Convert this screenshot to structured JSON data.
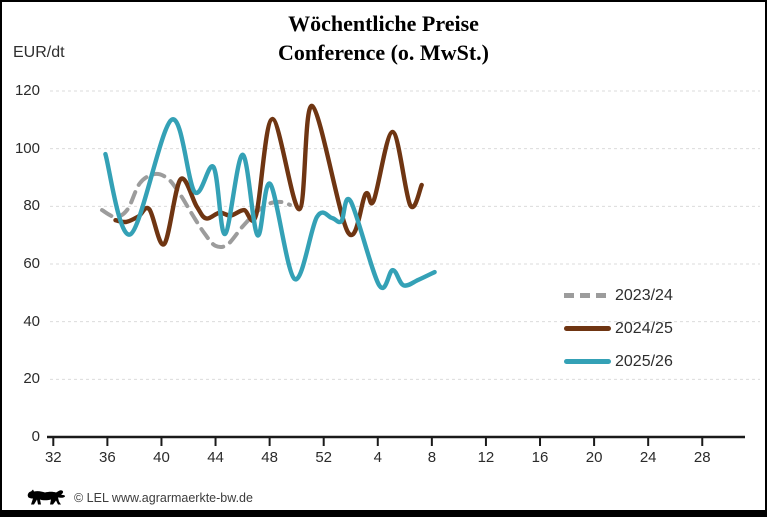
{
  "header": {
    "title_line1": "Wöchentliche Preise",
    "title_line2": "Conference (o. MwSt.)",
    "unit_label": "EUR/dt"
  },
  "footer": {
    "credit": "© LEL www.agrarmaerkte-bw.de",
    "logo": "baden-wuerttemberg-lion"
  },
  "colors": {
    "series_2023_24": "#9C9C9C",
    "series_2024_25": "#6F3512",
    "series_2025_26": "#34A1B6",
    "gridline": "#DBDBDB",
    "axis": "#1A1A1A"
  },
  "chart_data": {
    "type": "line",
    "title": "Wöchentliche Preise Conference (o. MwSt.)",
    "ylabel": "EUR/dt",
    "xlabel": "",
    "ylim": [
      0,
      120
    ],
    "yticks": [
      0,
      20,
      40,
      60,
      80,
      100,
      120
    ],
    "grid": "horizontal dashed",
    "legend_position": "right-middle",
    "x_axis_note": "calendar weeks; series points use axis positions where 0 = week 32, 20 = week 52, 24 = week 4 of the following year",
    "xticks": [
      {
        "label": "32",
        "pos": 0
      },
      {
        "label": "36",
        "pos": 4
      },
      {
        "label": "40",
        "pos": 8
      },
      {
        "label": "44",
        "pos": 12
      },
      {
        "label": "48",
        "pos": 16
      },
      {
        "label": "52",
        "pos": 20
      },
      {
        "label": "4",
        "pos": 24
      },
      {
        "label": "8",
        "pos": 28
      },
      {
        "label": "12",
        "pos": 32
      },
      {
        "label": "16",
        "pos": 36
      },
      {
        "label": "20",
        "pos": 40
      },
      {
        "label": "24",
        "pos": 44
      },
      {
        "label": "28",
        "pos": 48
      }
    ],
    "series": [
      {
        "name": "2023/24",
        "color": "#9C9C9C",
        "style": "dashed",
        "points": [
          [
            3.6,
            78.7
          ],
          [
            4.6,
            76.3
          ],
          [
            5.5,
            79
          ],
          [
            6.4,
            88
          ],
          [
            7.5,
            91.2
          ],
          [
            8.5,
            89.5
          ],
          [
            9.4,
            84
          ],
          [
            10.3,
            77
          ],
          [
            11.2,
            70.5
          ],
          [
            12.0,
            66.3
          ],
          [
            12.9,
            66.8
          ],
          [
            14.0,
            73
          ],
          [
            15.1,
            78.3
          ],
          [
            16.0,
            81
          ],
          [
            16.9,
            81.5
          ],
          [
            17.5,
            80.5
          ]
        ]
      },
      {
        "name": "2024/25",
        "color": "#6F3512",
        "style": "solid",
        "points": [
          [
            4.6,
            75.2
          ],
          [
            5.4,
            74.6
          ],
          [
            6.3,
            76.5
          ],
          [
            7.1,
            79
          ],
          [
            8.2,
            66.9
          ],
          [
            9.4,
            89.3
          ],
          [
            10.6,
            80
          ],
          [
            11.3,
            75.8
          ],
          [
            12.3,
            77.8
          ],
          [
            13.1,
            76.8
          ],
          [
            14.1,
            78.7
          ],
          [
            15.0,
            77
          ],
          [
            16.2,
            110.3
          ],
          [
            18.2,
            79
          ],
          [
            19.15,
            114.8
          ],
          [
            21.8,
            71
          ],
          [
            23.1,
            84.3
          ],
          [
            23.7,
            82
          ],
          [
            25.1,
            105.8
          ],
          [
            26.4,
            80.4
          ],
          [
            27.25,
            87.4
          ]
        ]
      },
      {
        "name": "2025/26",
        "color": "#34A1B6",
        "style": "solid",
        "points": [
          [
            3.85,
            98.1
          ],
          [
            5.7,
            70.3
          ],
          [
            8.74,
            110
          ],
          [
            10.45,
            85
          ],
          [
            11.85,
            93.6
          ],
          [
            12.7,
            70.4
          ],
          [
            14.0,
            97.9
          ],
          [
            15.1,
            70
          ],
          [
            16.05,
            87.7
          ],
          [
            17.85,
            54.8
          ],
          [
            19.5,
            76.3
          ],
          [
            20.6,
            76
          ],
          [
            21.3,
            74.8
          ],
          [
            22.0,
            81.7
          ],
          [
            24.1,
            52.7
          ],
          [
            25.1,
            57.9
          ],
          [
            25.9,
            52.6
          ],
          [
            27.0,
            54.5
          ],
          [
            28.2,
            57.2
          ]
        ]
      }
    ]
  }
}
